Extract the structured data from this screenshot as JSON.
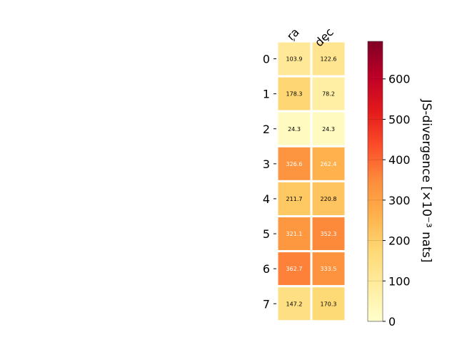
{
  "chart_data": {
    "type": "heatmap",
    "columns": [
      "ra",
      "dec"
    ],
    "rows": [
      "0",
      "1",
      "2",
      "3",
      "4",
      "5",
      "6",
      "7"
    ],
    "values": [
      [
        103.9,
        122.6
      ],
      [
        178.3,
        78.2
      ],
      [
        24.3,
        24.3
      ],
      [
        326.6,
        262.4
      ],
      [
        211.7,
        220.8
      ],
      [
        321.1,
        352.3
      ],
      [
        362.7,
        333.5
      ],
      [
        147.2,
        170.3
      ]
    ],
    "cell_labels": [
      [
        "103.9",
        "122.6"
      ],
      [
        "178.3",
        "78.2"
      ],
      [
        "24.3",
        "24.3"
      ],
      [
        "326.6",
        "262.4"
      ],
      [
        "211.7",
        "220.8"
      ],
      [
        "321.1",
        "352.3"
      ],
      [
        "362.7",
        "333.5"
      ],
      [
        "147.2",
        "170.3"
      ]
    ],
    "colorbar": {
      "label": "JS-divergence [×10⁻³ nats]",
      "range": [
        0,
        693
      ],
      "ticks": [
        0,
        100,
        200,
        300,
        400,
        500,
        600
      ],
      "colormap": "YlOrRd"
    },
    "colors": {
      "colormap_stops": [
        "#ffffcc",
        "#ffeda0",
        "#fed976",
        "#feb24c",
        "#fd8d3c",
        "#fc4e2a",
        "#e31a1c",
        "#bd0026",
        "#800026"
      ],
      "cell_border": "#ffffff",
      "axis": "#000000"
    }
  }
}
